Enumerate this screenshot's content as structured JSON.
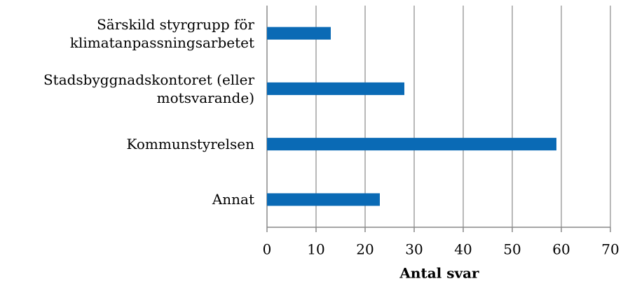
{
  "chart_data": {
    "type": "barh",
    "categories": [
      "Särskild styrgrupp för klimatanpassningsarbetet",
      "Stadsbyggnadskontoret (eller motsvarande)",
      "Kommunstyrelsen",
      "Annat"
    ],
    "values": [
      13,
      28,
      59,
      23
    ],
    "color": "#0a6ab5",
    "xlabel": "Antal svar",
    "xlim": [
      0,
      70
    ],
    "xticks": [
      0,
      10,
      20,
      30,
      40,
      50,
      60,
      70
    ],
    "grid": true
  }
}
